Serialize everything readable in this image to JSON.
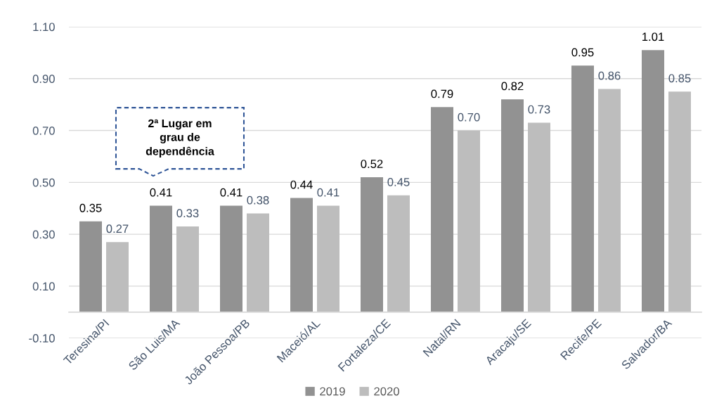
{
  "chart_data": {
    "type": "bar",
    "categories": [
      "Teresina/PI",
      "São Luis/MA",
      "João Pessoa/PB",
      "Maceió/AL",
      "Fortaleza/CE",
      "Natal/RN",
      "Aracaju/SE",
      "Recife/PE",
      "Salvador/BA"
    ],
    "series": [
      {
        "name": "2019",
        "color": "#929292",
        "values": [
          0.35,
          0.41,
          0.41,
          0.44,
          0.52,
          0.79,
          0.82,
          0.95,
          1.01
        ],
        "value_labels": [
          "0.35",
          "0.41",
          "0.41",
          "0.44",
          "0.52",
          "0.79",
          "0.82",
          "0.95",
          "1.01"
        ]
      },
      {
        "name": "2020",
        "color": "#bdbdbd",
        "values": [
          0.27,
          0.33,
          0.38,
          0.41,
          0.45,
          0.7,
          0.73,
          0.86,
          0.85
        ],
        "value_labels": [
          "0.27",
          "0.33",
          "0.38",
          "0.41",
          "0.45",
          "0.70",
          "0.73",
          "0.86",
          "0.85"
        ]
      }
    ],
    "ylim": [
      -0.1,
      1.1
    ],
    "yticks": [
      {
        "value": -0.1,
        "label": "-0.10"
      },
      {
        "value": 0.1,
        "label": "0.10"
      },
      {
        "value": 0.3,
        "label": "0.30"
      },
      {
        "value": 0.5,
        "label": "0.50"
      },
      {
        "value": 0.7,
        "label": "0.70"
      },
      {
        "value": 0.9,
        "label": "0.90"
      },
      {
        "value": 1.1,
        "label": "1.10"
      }
    ],
    "grid": "y",
    "legend": "bottom",
    "annotations": [
      "2ª Lugar em\ngrau de\ndependência"
    ]
  }
}
